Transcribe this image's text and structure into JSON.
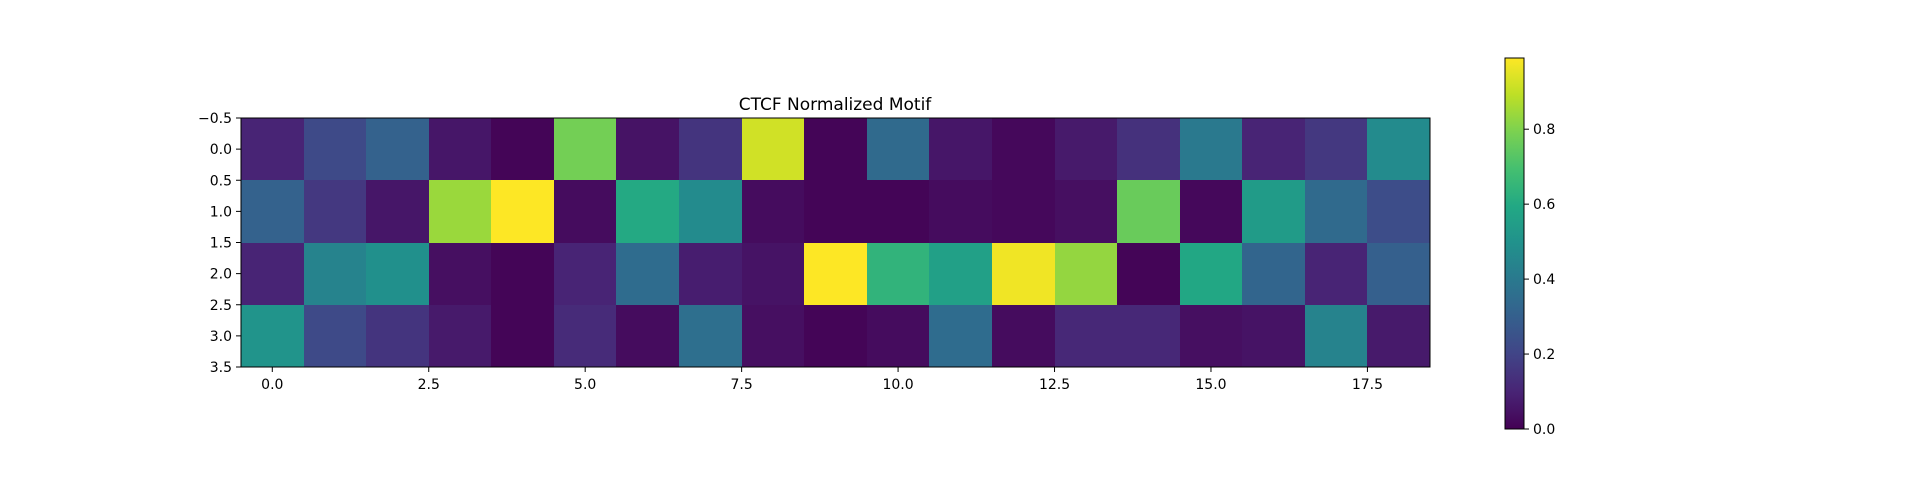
{
  "chart_data": {
    "type": "heatmap",
    "title": "CTCF Normalized Motif",
    "xlabel": "",
    "ylabel": "",
    "x_range": [
      -0.5,
      18.5
    ],
    "y_range": [
      3.5,
      -0.5
    ],
    "x_ticks": [
      0.0,
      2.5,
      5.0,
      7.5,
      10.0,
      12.5,
      15.0,
      17.5
    ],
    "x_tick_labels": [
      "0.0",
      "2.5",
      "5.0",
      "7.5",
      "10.0",
      "12.5",
      "15.0",
      "17.5"
    ],
    "y_ticks": [
      -0.5,
      0.0,
      0.5,
      1.0,
      1.5,
      2.0,
      2.5,
      3.0,
      3.5
    ],
    "y_tick_labels": [
      "−0.5",
      "0.0",
      "0.5",
      "1.0",
      "1.5",
      "2.0",
      "2.5",
      "3.0",
      "3.5"
    ],
    "colormap": "viridis",
    "vmin": 0.0,
    "vmax": 0.99,
    "colorbar_ticks": [
      0.0,
      0.2,
      0.4,
      0.6,
      0.8
    ],
    "colorbar_tick_labels": [
      "0.0",
      "0.2",
      "0.4",
      "0.6",
      "0.8"
    ],
    "grid": false,
    "values": [
      [
        0.1,
        0.22,
        0.31,
        0.06,
        0.01,
        0.78,
        0.05,
        0.15,
        0.92,
        0.01,
        0.34,
        0.06,
        0.02,
        0.07,
        0.14,
        0.4,
        0.1,
        0.16,
        0.47
      ],
      [
        0.31,
        0.16,
        0.06,
        0.84,
        0.99,
        0.03,
        0.6,
        0.47,
        0.03,
        0.01,
        0.01,
        0.03,
        0.02,
        0.04,
        0.76,
        0.02,
        0.54,
        0.34,
        0.23
      ],
      [
        0.1,
        0.44,
        0.49,
        0.04,
        0.01,
        0.1,
        0.35,
        0.08,
        0.05,
        0.99,
        0.64,
        0.56,
        0.97,
        0.83,
        0.01,
        0.59,
        0.32,
        0.1,
        0.3
      ],
      [
        0.51,
        0.22,
        0.15,
        0.07,
        0.01,
        0.12,
        0.03,
        0.36,
        0.04,
        0.01,
        0.03,
        0.35,
        0.03,
        0.11,
        0.11,
        0.04,
        0.05,
        0.44,
        0.07
      ]
    ]
  }
}
